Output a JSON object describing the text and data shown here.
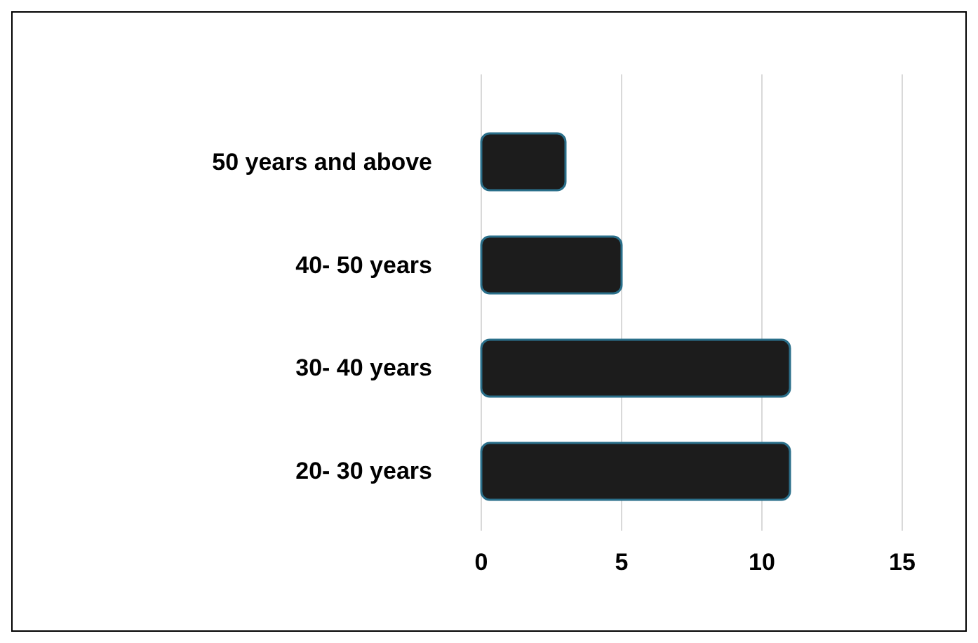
{
  "chart_data": {
    "type": "bar",
    "orientation": "horizontal",
    "categories": [
      "50 years and above",
      "40- 50 years",
      "30- 40 years",
      "20- 30 years"
    ],
    "values": [
      3,
      5,
      11,
      11
    ],
    "color": "#1c1c1c",
    "xlim": [
      0,
      15
    ],
    "xticks": [
      0,
      5,
      10,
      15
    ],
    "grid": "x"
  }
}
